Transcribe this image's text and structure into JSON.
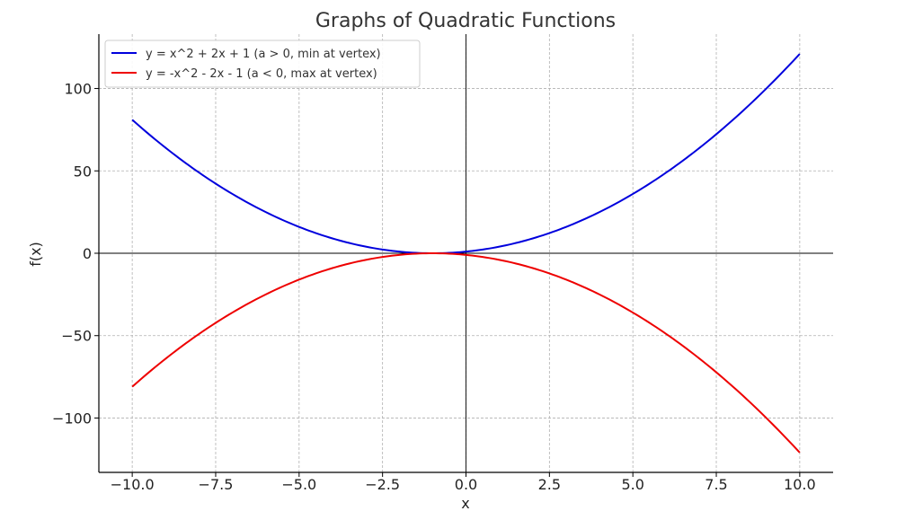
{
  "chart_data": {
    "type": "line",
    "title": "Graphs of Quadratic Functions",
    "xlabel": "x",
    "ylabel": "f(x)",
    "xlim": [
      -11,
      11
    ],
    "ylim": [
      -133,
      133
    ],
    "xticks": [
      -10,
      -7.5,
      -5,
      -2.5,
      0,
      2.5,
      5,
      7.5,
      10
    ],
    "xtick_labels": [
      "−10.0",
      "−7.5",
      "−5.0",
      "−2.5",
      "0.0",
      "2.5",
      "5.0",
      "7.5",
      "10.0"
    ],
    "yticks": [
      -100,
      -50,
      0,
      50,
      100
    ],
    "ytick_labels": [
      "−100",
      "−50",
      "0",
      "50",
      "100"
    ],
    "grid": true,
    "legend_position": "top-left",
    "x_domain": [
      -10,
      10
    ],
    "series": [
      {
        "name": "y = x^2 + 2x + 1 (a > 0, min at vertex)",
        "color": "#0000dd",
        "coefficients": {
          "a": 1,
          "b": 2,
          "c": 1
        },
        "points": [
          [
            -10,
            81
          ],
          [
            -7.5,
            42.25
          ],
          [
            -5,
            16
          ],
          [
            -2.5,
            2.25
          ],
          [
            -1,
            0
          ],
          [
            0,
            1
          ],
          [
            2.5,
            12.25
          ],
          [
            5,
            36
          ],
          [
            7.5,
            72.25
          ],
          [
            10,
            121
          ]
        ]
      },
      {
        "name": "y = -x^2 - 2x - 1 (a < 0, max at vertex)",
        "color": "#ee0000",
        "coefficients": {
          "a": -1,
          "b": -2,
          "c": -1
        },
        "points": [
          [
            -10,
            -81
          ],
          [
            -7.5,
            -42.25
          ],
          [
            -5,
            -16
          ],
          [
            -2.5,
            -2.25
          ],
          [
            -1,
            0
          ],
          [
            0,
            -1
          ],
          [
            2.5,
            -12.25
          ],
          [
            5,
            -36
          ],
          [
            7.5,
            -72.25
          ],
          [
            10,
            -121
          ]
        ]
      }
    ]
  }
}
